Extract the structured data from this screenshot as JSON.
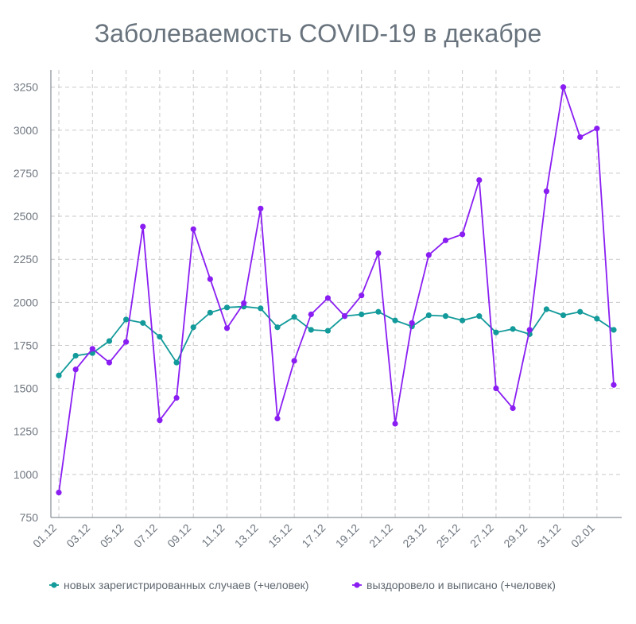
{
  "chart_data": {
    "type": "line",
    "title": "Заболеваемость COVID-19 в декабре",
    "xlabel": "",
    "ylabel": "",
    "ylim": [
      750,
      3350
    ],
    "y_ticks": [
      750,
      1000,
      1250,
      1500,
      1750,
      2000,
      2250,
      2500,
      2750,
      3000,
      3250
    ],
    "x": [
      "01.12",
      "02.12",
      "03.12",
      "04.12",
      "05.12",
      "06.12",
      "07.12",
      "08.12",
      "09.12",
      "10.12",
      "11.12",
      "12.12",
      "13.12",
      "14.12",
      "15.12",
      "16.12",
      "17.12",
      "18.12",
      "19.12",
      "20.12",
      "21.12",
      "22.12",
      "23.12",
      "24.12",
      "25.12",
      "26.12",
      "27.12",
      "28.12",
      "29.12",
      "30.12",
      "31.12",
      "01.01",
      "02.01",
      "03.01"
    ],
    "x_tick_labels": [
      "01.12",
      "03.12",
      "05.12",
      "07.12",
      "09.12",
      "11.12",
      "13.12",
      "15.12",
      "17.12",
      "19.12",
      "21.12",
      "23.12",
      "25.12",
      "27.12",
      "29.12",
      "31.12",
      "02.01"
    ],
    "grid": true,
    "legend_position": "bottom",
    "series": [
      {
        "name": "новых зарегистрированных случаев (+человек)",
        "color": "#139a9a",
        "values": [
          1575,
          1690,
          1705,
          1775,
          1900,
          1880,
          1800,
          1650,
          1855,
          1940,
          1970,
          1975,
          1965,
          1855,
          1915,
          1840,
          1835,
          1920,
          1930,
          1945,
          1895,
          1860,
          1925,
          1920,
          1895,
          1920,
          1825,
          1845,
          1815,
          1960,
          1925,
          1945,
          1905,
          1840
        ]
      },
      {
        "name": "выздоровело и выписано (+человек)",
        "color": "#8a1ef2",
        "values": [
          895,
          1610,
          1730,
          1650,
          1770,
          2440,
          1315,
          1445,
          2425,
          2135,
          1850,
          1995,
          2545,
          1325,
          1660,
          1930,
          2025,
          1920,
          2040,
          2285,
          1295,
          1880,
          2275,
          2360,
          2395,
          2710,
          1500,
          1385,
          1840,
          2645,
          3250,
          2960,
          3010,
          1520
        ]
      }
    ]
  }
}
